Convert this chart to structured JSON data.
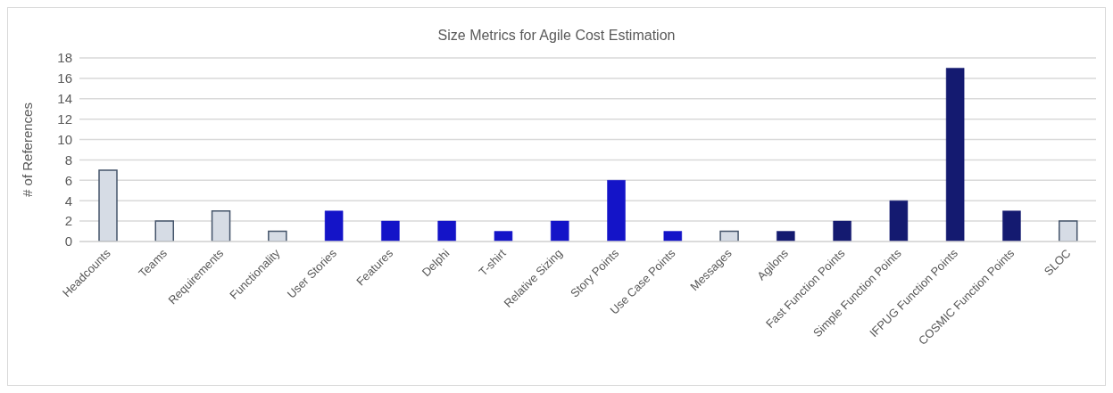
{
  "chart_data": {
    "type": "bar",
    "title": "Size Metrics for Agile Cost Estimation",
    "ylabel": "# of References",
    "categories": [
      "Headcounts",
      "Teams",
      "Requirements",
      "Functionality",
      "User Stories",
      "Features",
      "Delphi",
      "T-shirt",
      "Relative Sizing",
      "Story Points",
      "Use Case Points",
      "Messages",
      "Agilons",
      "Fast Function Points",
      "Simple Function Points",
      "IFPUG Function Points",
      "COSMIC Function Points",
      "SLOC"
    ],
    "values": [
      7,
      2,
      3,
      1,
      3,
      2,
      2,
      1,
      2,
      6,
      1,
      1,
      1,
      2,
      4,
      17,
      3,
      2
    ],
    "colors": [
      "#d6dce5",
      "#d6dce5",
      "#d6dce5",
      "#d6dce5",
      "#1414c8",
      "#1414c8",
      "#1414c8",
      "#1414c8",
      "#1414c8",
      "#1414c8",
      "#1414c8",
      "#d6dce5",
      "#141a70",
      "#141a70",
      "#141a70",
      "#141a70",
      "#141a70",
      "#d6dce5"
    ],
    "ylim": [
      0,
      18
    ],
    "yticks": [
      0,
      2,
      4,
      6,
      8,
      10,
      12,
      14,
      16,
      18
    ],
    "grid": "y",
    "legend": false
  }
}
